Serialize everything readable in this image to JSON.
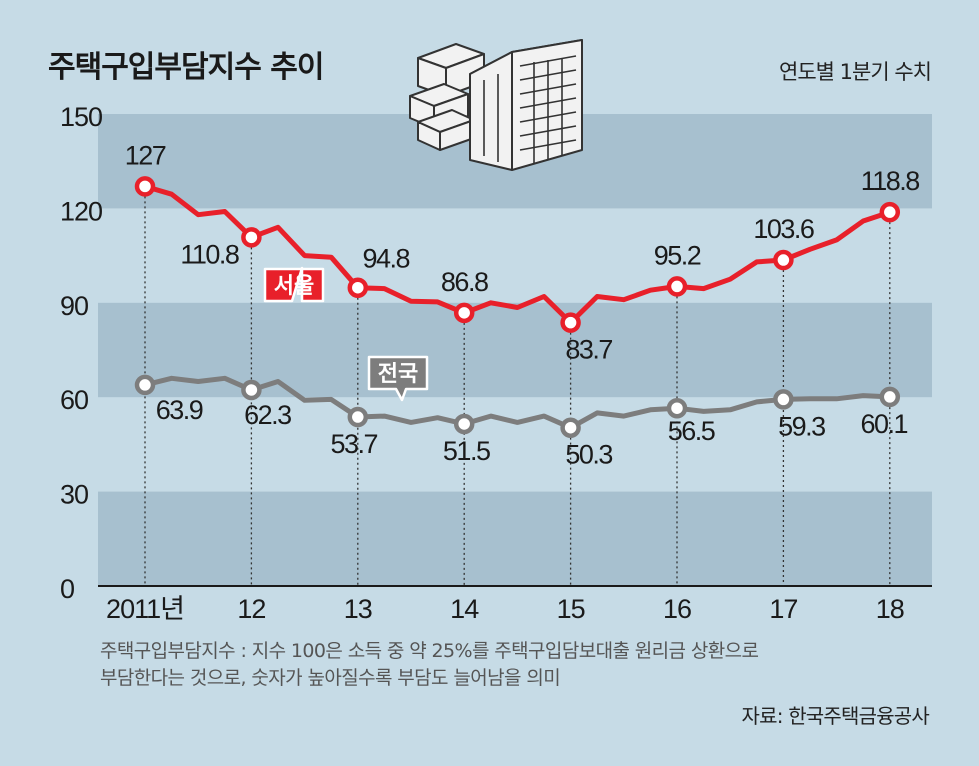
{
  "title": "주택구입부담지수 추이",
  "subtitle": "연도별 1분기 수치",
  "note_lines": [
    "주택구입부담지수 : 지수 100은 소득 중 약 25%를 주택구입담보대출 원리금 상환으로",
    "부담한다는 것으로, 숫자가 높아질수록 부담도 늘어남을 의미"
  ],
  "source": "자료: 한국주택금융공사",
  "colors": {
    "background": "#c6dbe6",
    "band": "#a7c0cf",
    "seoul": "#e8202a",
    "national": "#7d7d7d",
    "axis": "#1a1a1a"
  },
  "chart_data": {
    "type": "line",
    "title": "주택구입부담지수 추이",
    "subtitle": "연도별 1분기 수치",
    "x_labels": [
      "2011년",
      "12",
      "13",
      "14",
      "15",
      "16",
      "17",
      "18"
    ],
    "y_ticks": [
      0,
      30,
      60,
      90,
      120,
      150
    ],
    "ylim": [
      0,
      150
    ],
    "grid": "alternating horizontal bands",
    "series": [
      {
        "name": "서울",
        "color": "#e8202a",
        "values": [
          127,
          124.5,
          118,
          119,
          110.8,
          114,
          105,
          104.5,
          94.8,
          94.5,
          90.5,
          90.3,
          86.8,
          90,
          88.5,
          92,
          83.7,
          92,
          91,
          94,
          95.2,
          94.5,
          97.5,
          103,
          103.6,
          107,
          110,
          116,
          118.8
        ],
        "annual_q1_values": [
          127,
          110.8,
          94.8,
          86.8,
          83.7,
          95.2,
          103.6,
          118.8
        ],
        "annual_labels": [
          "127",
          "110.8",
          "94.8",
          "86.8",
          "83.7",
          "95.2",
          "103.6",
          "118.8"
        ]
      },
      {
        "name": "전국",
        "color": "#7d7d7d",
        "values": [
          63.9,
          66,
          65,
          66,
          62.3,
          65,
          59,
          59.3,
          53.7,
          54,
          52,
          53.5,
          51.5,
          54,
          52,
          54,
          50.3,
          55,
          54,
          56,
          56.5,
          55.5,
          56,
          58.5,
          59.3,
          59.5,
          59.5,
          60.5,
          60.1
        ],
        "annual_q1_values": [
          63.9,
          62.3,
          53.7,
          51.5,
          50.3,
          56.5,
          59.3,
          60.1
        ],
        "annual_labels": [
          "63.9",
          "62.3",
          "53.7",
          "51.5",
          "50.3",
          "56.5",
          "59.3",
          "60.1"
        ]
      }
    ]
  }
}
